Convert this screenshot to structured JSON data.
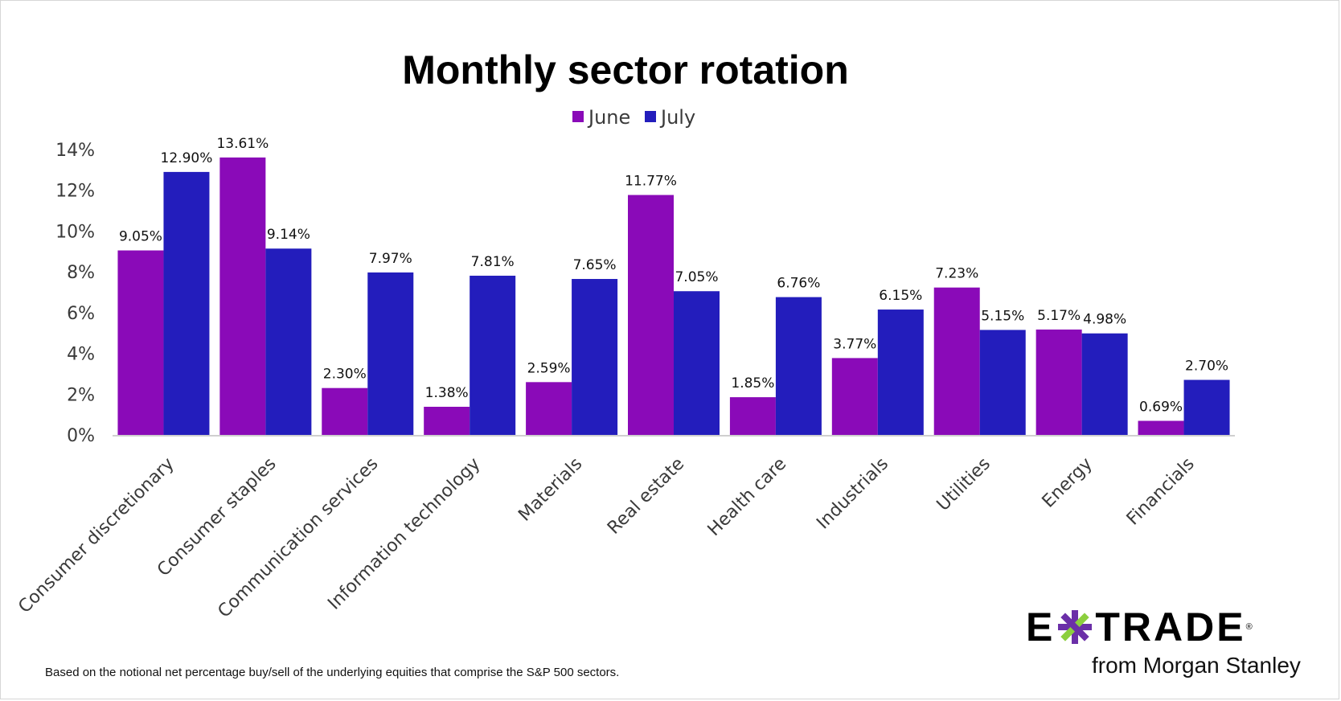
{
  "chart_data": {
    "type": "bar",
    "title": "Monthly sector rotation",
    "categories": [
      "Consumer discretionary",
      "Consumer staples",
      "Communication services",
      "Information technology",
      "Materials",
      "Real estate",
      "Health care",
      "Industrials",
      "Utilities",
      "Energy",
      "Financials"
    ],
    "series": [
      {
        "name": "June",
        "color": "#8a0ab8",
        "values": [
          9.05,
          13.61,
          2.3,
          1.38,
          2.59,
          11.77,
          1.85,
          3.77,
          7.23,
          5.17,
          0.69
        ],
        "labels": [
          "9.05%",
          "13.61%",
          "2.30%",
          "1.38%",
          "2.59%",
          "11.77%",
          "1.85%",
          "3.77%",
          "7.23%",
          "5.17%",
          "0.69%"
        ]
      },
      {
        "name": "July",
        "color": "#231dbc",
        "values": [
          12.9,
          9.14,
          7.97,
          7.81,
          7.65,
          7.05,
          6.76,
          6.15,
          5.15,
          4.98,
          2.7
        ],
        "labels": [
          "12.90%",
          "9.14%",
          "7.97%",
          "7.81%",
          "7.65%",
          "7.05%",
          "6.76%",
          "6.15%",
          "5.15%",
          "4.98%",
          "2.70%"
        ]
      }
    ],
    "xlabel": "",
    "ylabel": "",
    "ylim": [
      0,
      14
    ],
    "yticks": [
      0,
      2,
      4,
      6,
      8,
      10,
      12,
      14
    ],
    "ytick_labels": [
      "0%",
      "2%",
      "4%",
      "6%",
      "8%",
      "10%",
      "12%",
      "14%"
    ],
    "legend_position": "top-center",
    "grid": false
  },
  "footnote": "Based on the notional net percentage buy/sell of the underlying equities that comprise the S&P 500 sectors.",
  "logo": {
    "left": "E",
    "right": "TRADE",
    "registered": "®",
    "tagline": "from Morgan Stanley",
    "colors": {
      "x_purple": "#6b2fa8",
      "x_green": "#8ccf3e"
    }
  }
}
